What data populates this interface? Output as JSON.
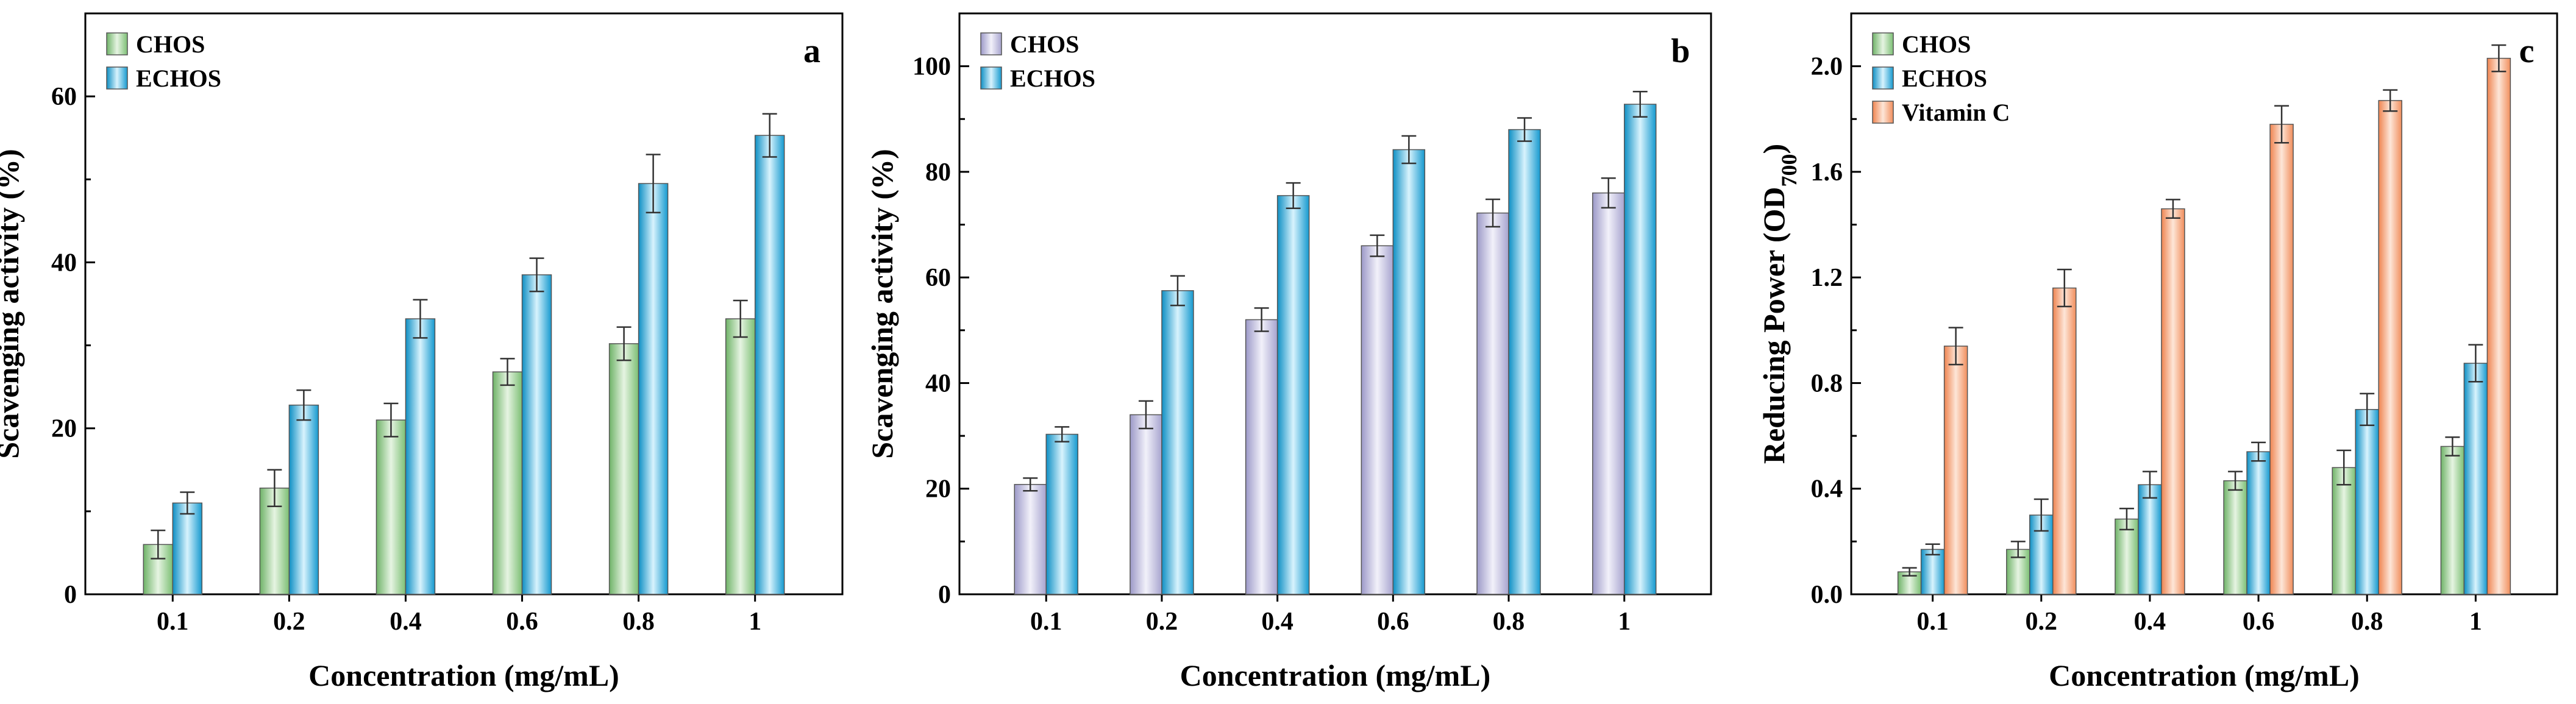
{
  "colors": {
    "CHOS_a": "#8fca86",
    "ECHOS": "#1aa6d9",
    "CHOS_b": "#b1aed6",
    "Vitamin C": "#f39a6a"
  },
  "chart_data": [
    {
      "type": "bar",
      "panel": "a",
      "categories": [
        "0.1",
        "0.2",
        "0.4",
        "0.6",
        "0.8",
        "1"
      ],
      "series": [
        {
          "name": "CHOS",
          "color_key": "CHOS_a",
          "values": [
            6.0,
            12.8,
            21.0,
            26.8,
            30.2,
            33.2
          ],
          "errors": [
            1.7,
            2.2,
            2.0,
            1.6,
            2.0,
            2.2
          ]
        },
        {
          "name": "ECHOS",
          "color_key": "ECHOS",
          "values": [
            11.0,
            22.8,
            33.2,
            38.5,
            49.5,
            55.3
          ],
          "errors": [
            1.3,
            1.8,
            2.3,
            2.0,
            3.5,
            2.6
          ]
        }
      ],
      "xlabel": "Concentration (mg/mL)",
      "ylabel": "Scavenging activity (%)",
      "ylim": [
        0,
        70
      ],
      "yticks": [
        "0",
        "20",
        "40",
        "60"
      ],
      "legend_position": "top-left",
      "grid": false
    },
    {
      "type": "bar",
      "panel": "b",
      "categories": [
        "0.1",
        "0.2",
        "0.4",
        "0.6",
        "0.8",
        "1"
      ],
      "series": [
        {
          "name": "CHOS",
          "color_key": "CHOS_b",
          "values": [
            20.8,
            34.0,
            52.0,
            66.0,
            72.2,
            76.0
          ],
          "errors": [
            1.2,
            2.6,
            2.2,
            2.0,
            2.6,
            2.8
          ]
        },
        {
          "name": "ECHOS",
          "color_key": "ECHOS",
          "values": [
            30.3,
            57.5,
            75.5,
            84.2,
            88.0,
            92.8
          ],
          "errors": [
            1.4,
            2.8,
            2.4,
            2.6,
            2.2,
            2.4
          ]
        }
      ],
      "xlabel": "Concentration (mg/mL)",
      "ylabel": "Scavenging activity (%)",
      "ylim": [
        0,
        110
      ],
      "yticks": [
        "0",
        "20",
        "40",
        "60",
        "80",
        "100"
      ],
      "legend_position": "top-left",
      "grid": false
    },
    {
      "type": "bar",
      "panel": "c",
      "categories": [
        "0.1",
        "0.2",
        "0.4",
        "0.6",
        "0.8",
        "1"
      ],
      "series": [
        {
          "name": "CHOS",
          "color_key": "CHOS_a",
          "values": [
            0.085,
            0.17,
            0.285,
            0.43,
            0.48,
            0.56
          ],
          "errors": [
            0.015,
            0.03,
            0.04,
            0.035,
            0.065,
            0.035
          ]
        },
        {
          "name": "ECHOS",
          "color_key": "ECHOS",
          "values": [
            0.17,
            0.3,
            0.415,
            0.54,
            0.7,
            0.875
          ],
          "errors": [
            0.02,
            0.06,
            0.05,
            0.035,
            0.06,
            0.07
          ]
        },
        {
          "name": "Vitamin C",
          "color_key": "Vitamin C",
          "values": [
            0.94,
            1.16,
            1.46,
            1.78,
            1.87,
            2.03
          ],
          "errors": [
            0.07,
            0.07,
            0.035,
            0.07,
            0.04,
            0.05
          ]
        }
      ],
      "xlabel": "Concentration (mg/mL)",
      "ylabel": "Reducing Power (OD",
      "ylabel_sub": "700",
      "ylabel_end": ")",
      "ylim": [
        0,
        2.2
      ],
      "yticks": [
        "0.0",
        "0.4",
        "0.8",
        "1.2",
        "1.6",
        "2.0"
      ],
      "legend_position": "top-left",
      "grid": false
    }
  ]
}
